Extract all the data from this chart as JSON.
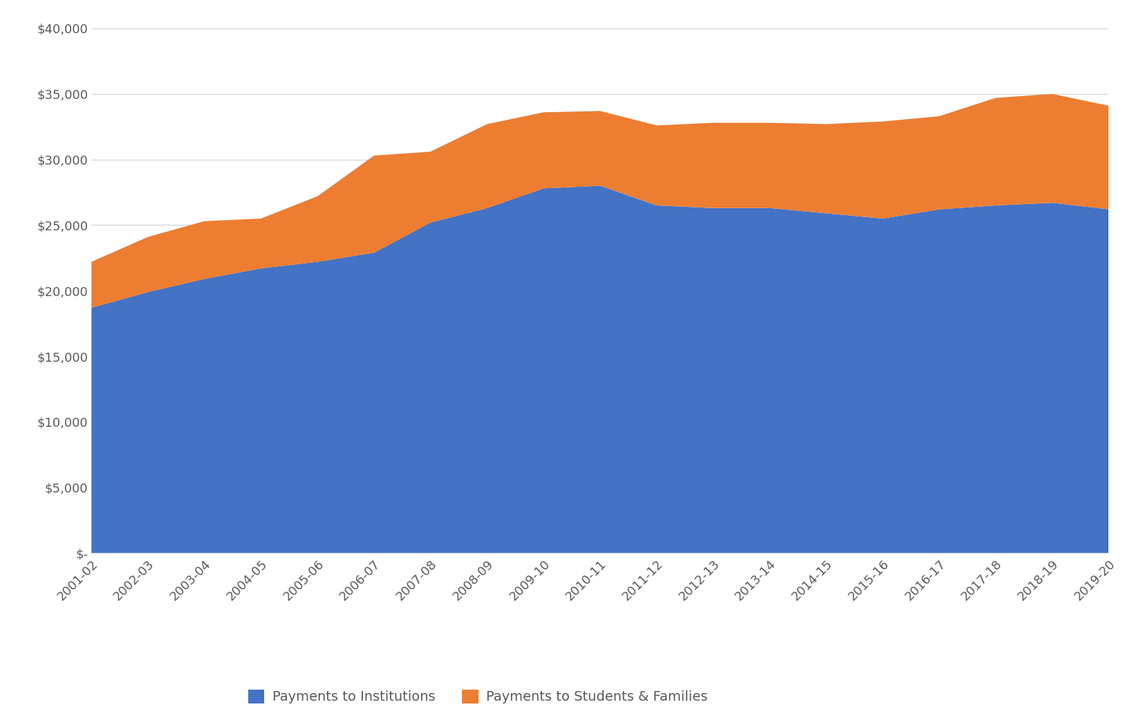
{
  "years": [
    "2001-02",
    "2002-03",
    "2003-04",
    "2004-05",
    "2005-06",
    "2006-07",
    "2007-08",
    "2008-09",
    "2009-10",
    "2010-11",
    "2011-12",
    "2012-13",
    "2013-14",
    "2014-15",
    "2015-16",
    "2016-17",
    "2017-18",
    "2018-19",
    "2019-20"
  ],
  "institutions": [
    18700,
    19900,
    20900,
    21700,
    22200,
    22900,
    25200,
    26300,
    27800,
    28000,
    26500,
    26300,
    26300,
    25900,
    25500,
    26200,
    26500,
    26700,
    26200
  ],
  "students_families": [
    3500,
    4200,
    4400,
    3800,
    5000,
    7400,
    5400,
    6400,
    5800,
    5700,
    6100,
    6500,
    6500,
    6800,
    7400,
    7100,
    8200,
    8300,
    7900
  ],
  "institutions_color": "#4472C4",
  "students_families_color": "#ED7D31",
  "label_institutions": "Payments to Institutions",
  "label_students": "Payments to Students & Families",
  "ylim": [
    0,
    40000
  ],
  "yticks": [
    0,
    5000,
    10000,
    15000,
    20000,
    25000,
    30000,
    35000,
    40000
  ],
  "background_color": "#ffffff",
  "grid_color": "#d4d4d4",
  "legend_fontsize": 14,
  "tick_fontsize": 13,
  "tick_color": "#595959"
}
